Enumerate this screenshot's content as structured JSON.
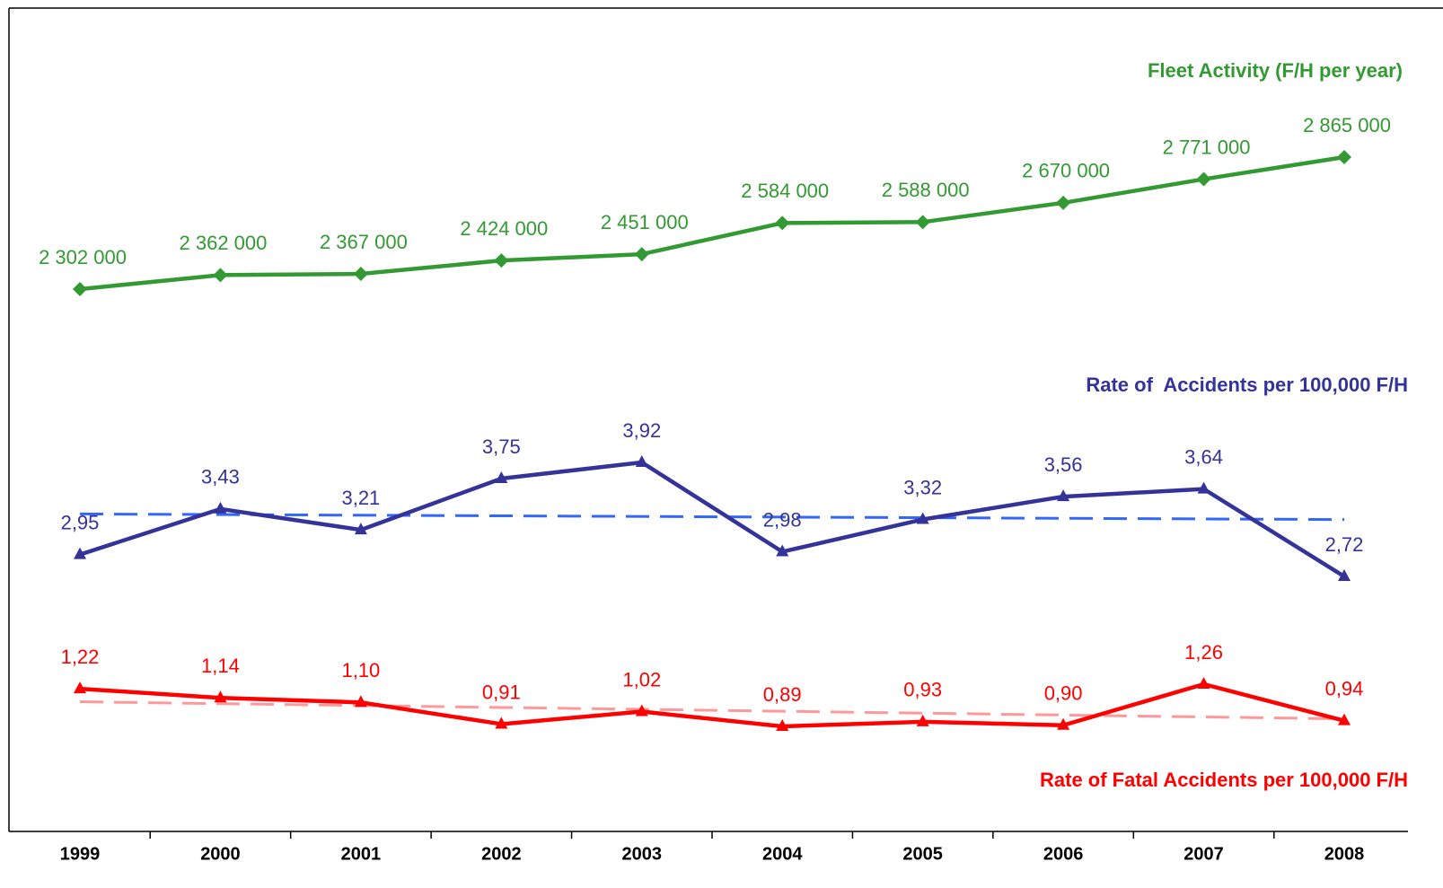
{
  "chart_data": {
    "type": "line",
    "categories": [
      "1999",
      "2000",
      "2001",
      "2002",
      "2003",
      "2004",
      "2005",
      "2006",
      "2007",
      "2008"
    ],
    "series": [
      {
        "name": "Fleet Activity (F/H per year)",
        "color": "#339933",
        "marker": "diamond",
        "values": [
          2302000,
          2362000,
          2367000,
          2424000,
          2451000,
          2584000,
          2588000,
          2670000,
          2771000,
          2865000
        ],
        "value_labels": [
          "2 302 000",
          "2 362 000",
          "2 367 000",
          "2 424 000",
          "2 451 000",
          "2 584 000",
          "2 588 000",
          "2 670 000",
          "2 771 000",
          "2 865 000"
        ]
      },
      {
        "name": "Rate of  Accidents per 100,000 F/H",
        "color": "#333399",
        "marker": "triangle",
        "trendline": true,
        "trend_color": "#3366ff",
        "values": [
          2.95,
          3.43,
          3.21,
          3.75,
          3.92,
          2.98,
          3.32,
          3.56,
          3.64,
          2.72
        ],
        "value_labels": [
          "2,95",
          "3,43",
          "3,21",
          "3,75",
          "3,92",
          "2,98",
          "3,32",
          "3,56",
          "3,64",
          "2,72"
        ]
      },
      {
        "name": "Rate of Fatal Accidents per 100,000 F/H",
        "color": "#ff0000",
        "marker": "triangle",
        "trendline": true,
        "trend_color": "#ff9999",
        "values": [
          1.22,
          1.14,
          1.1,
          0.91,
          1.02,
          0.89,
          0.93,
          0.9,
          1.26,
          0.94
        ],
        "value_labels": [
          "1,22",
          "1,14",
          "1,10",
          "0,91",
          "1,02",
          "0,89",
          "0,93",
          "0,90",
          "1,26",
          "0,94"
        ]
      }
    ]
  }
}
